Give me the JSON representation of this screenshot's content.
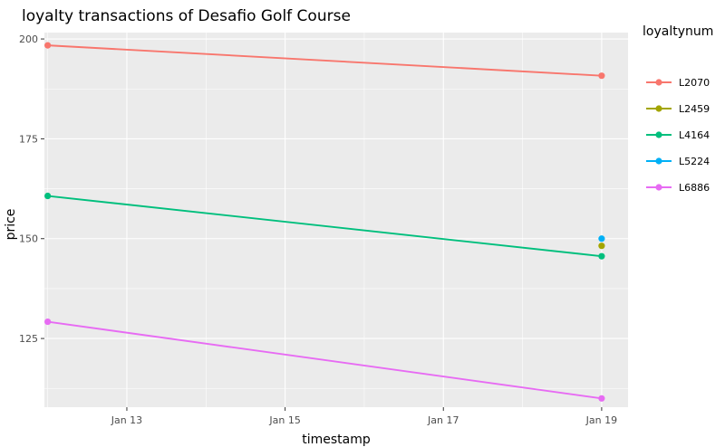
{
  "chart_data": {
    "type": "line",
    "title": "loyalty transactions of Desafio Golf Course",
    "xlabel": "timestamp",
    "ylabel": "price",
    "x_ticks": [
      "Jan 13",
      "Jan 15",
      "Jan 17",
      "Jan 19"
    ],
    "y_ticks": [
      "125",
      "150",
      "175",
      "200"
    ],
    "ylim": [
      107.8,
      201.6
    ],
    "xlim": [
      "2014-01-11 23:00",
      "2014-01-19 08:00"
    ],
    "grid": true,
    "legend_title": "loyaltynum",
    "legend_position": "right",
    "series": [
      {
        "name": "L2070",
        "color": "#F8766D",
        "points": [
          {
            "x": "2014-01-12",
            "y": 198.4
          },
          {
            "x": "2014-01-19",
            "y": 190.8
          }
        ]
      },
      {
        "name": "L2459",
        "color": "#A3A500",
        "points": [
          {
            "x": "2014-01-19",
            "y": 148.2
          }
        ]
      },
      {
        "name": "L4164",
        "color": "#00BF7D",
        "points": [
          {
            "x": "2014-01-12",
            "y": 160.7
          },
          {
            "x": "2014-01-19",
            "y": 145.6
          }
        ]
      },
      {
        "name": "L5224",
        "color": "#00B0F6",
        "points": [
          {
            "x": "2014-01-19",
            "y": 150.0
          }
        ]
      },
      {
        "name": "L6886",
        "color": "#E76BF3",
        "points": [
          {
            "x": "2014-01-12",
            "y": 129.2
          },
          {
            "x": "2014-01-19",
            "y": 110.0
          }
        ]
      }
    ]
  }
}
